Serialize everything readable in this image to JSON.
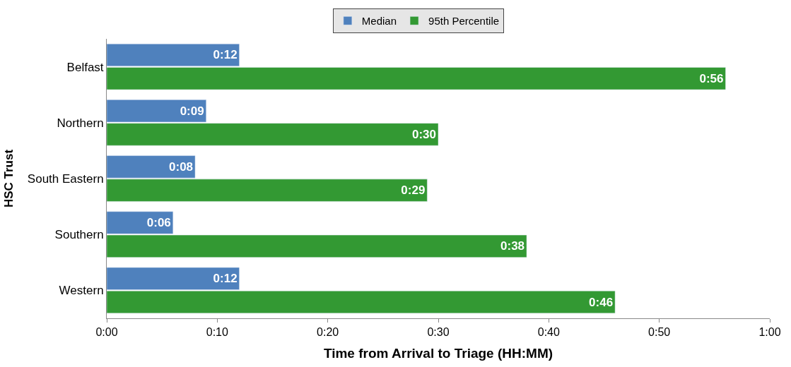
{
  "chart_data": {
    "type": "bar",
    "orientation": "horizontal",
    "xlabel": "Time from Arrival to Triage (HH:MM)",
    "ylabel": "HSC Trust",
    "categories": [
      "Belfast",
      "Northern",
      "South Eastern",
      "Southern",
      "Western"
    ],
    "series": [
      {
        "name": "Median",
        "color": "#4f81bd",
        "values": [
          12,
          9,
          8,
          6,
          12
        ],
        "value_labels": [
          "0:12",
          "0:09",
          "0:08",
          "0:06",
          "0:12"
        ]
      },
      {
        "name": "95th Percentile",
        "color": "#339933",
        "values": [
          56,
          30,
          29,
          38,
          46
        ],
        "value_labels": [
          "0:56",
          "0:30",
          "0:29",
          "0:38",
          "0:46"
        ]
      }
    ],
    "xlim": [
      0,
      60
    ],
    "xticks": [
      {
        "value": 0,
        "label": "0:00"
      },
      {
        "value": 10,
        "label": "0:10"
      },
      {
        "value": 20,
        "label": "0:20"
      },
      {
        "value": 30,
        "label": "0:30"
      },
      {
        "value": 40,
        "label": "0:40"
      },
      {
        "value": 50,
        "label": "0:50"
      },
      {
        "value": 60,
        "label": "1:00"
      }
    ],
    "legend": "top"
  }
}
